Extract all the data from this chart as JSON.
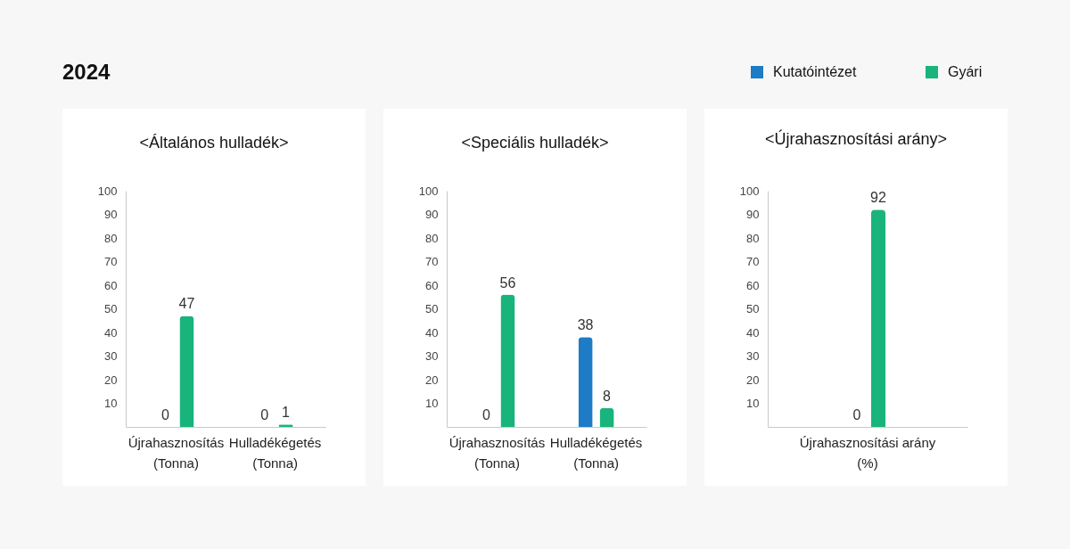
{
  "chart_data": [
    {
      "type": "bar",
      "title": "<Általános hulladék>",
      "annotations": [
        "2024"
      ],
      "categories": [
        "Újrahasznosítás (Tonna)",
        "Hulladékégetés (Tonna)"
      ],
      "series": [
        {
          "color": "#1e7bc6",
          "values": [
            0,
            0
          ]
        },
        {
          "color": "#18b47b",
          "values": [
            47,
            1
          ]
        }
      ],
      "ylim": [
        0,
        100
      ],
      "yticks": [
        10,
        20,
        30,
        40,
        50,
        60,
        70,
        80,
        90,
        100
      ],
      "data_labels": true
    },
    {
      "type": "bar",
      "title": "<Speciális hulladék>",
      "categories": [
        "Újrahasznosítás (Tonna)",
        "Hulladékégetés (Tonna)"
      ],
      "series": [
        {
          "color": "#1e7bc6",
          "values": [
            0,
            38
          ]
        },
        {
          "color": "#18b47b",
          "values": [
            56,
            8
          ]
        }
      ],
      "ylim": [
        0,
        100
      ],
      "yticks": [
        10,
        20,
        30,
        40,
        50,
        60,
        70,
        80,
        90,
        100
      ],
      "data_labels": true
    },
    {
      "type": "bar",
      "title": "<Újrahasznosítási arány>",
      "categories": [
        "Újrahasznosítási arány (%)"
      ],
      "series": [
        {
          "name": "Kutatóintézet",
          "color": "#1e7bc6",
          "values": [
            0
          ]
        },
        {
          "name": "Gyári",
          "color": "#18b47b",
          "values": [
            92
          ]
        }
      ],
      "ylim": [
        0,
        100
      ],
      "yticks": [
        10,
        20,
        30,
        40,
        50,
        60,
        70,
        80,
        90,
        100
      ],
      "data_labels": true,
      "legend": "top right"
    }
  ]
}
